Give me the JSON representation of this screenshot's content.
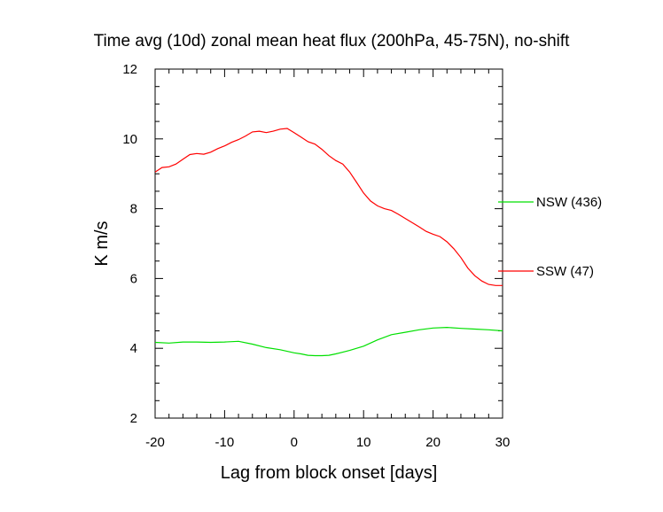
{
  "chart_data": {
    "type": "line",
    "title": "Time avg (10d) zonal mean heat flux (200hPa, 45-75N), no-shift",
    "xlabel": "Lag from block onset [days]",
    "ylabel": "K m/s",
    "xlim": [
      -20,
      30
    ],
    "ylim": [
      2,
      12
    ],
    "xticks": [
      -20,
      -10,
      0,
      10,
      20,
      30
    ],
    "yticks": [
      2,
      4,
      6,
      8,
      10,
      12
    ],
    "xtick_labels": [
      "-20",
      "-10",
      "0",
      "10",
      "20",
      "30"
    ],
    "ytick_labels": [
      "2",
      "4",
      "6",
      "8",
      "10",
      "12"
    ],
    "grid": false,
    "legend_position": "right-outside",
    "series": [
      {
        "name": "NSW (436)",
        "color": "#00e000",
        "x": [
          -20,
          -18,
          -16,
          -14,
          -12,
          -10,
          -8,
          -6,
          -4,
          -2,
          0,
          1,
          2,
          3,
          4,
          5,
          6,
          8,
          10,
          12,
          14,
          16,
          18,
          20,
          22,
          24,
          26,
          28,
          30
        ],
        "y": [
          4.17,
          4.15,
          4.18,
          4.18,
          4.17,
          4.18,
          4.2,
          4.12,
          4.02,
          3.96,
          3.87,
          3.84,
          3.8,
          3.79,
          3.79,
          3.8,
          3.84,
          3.94,
          4.06,
          4.24,
          4.39,
          4.46,
          4.53,
          4.58,
          4.6,
          4.57,
          4.55,
          4.53,
          4.5
        ]
      },
      {
        "name": "SSW (47)",
        "color": "#ff0000",
        "x": [
          -20,
          -19,
          -18,
          -17,
          -16,
          -15,
          -14,
          -13,
          -12,
          -11,
          -10,
          -9,
          -8,
          -7,
          -6,
          -5,
          -4,
          -3,
          -2,
          -1,
          0,
          1,
          2,
          3,
          4,
          5,
          6,
          7,
          8,
          9,
          10,
          11,
          12,
          13,
          14,
          15,
          16,
          17,
          18,
          19,
          20,
          21,
          22,
          23,
          24,
          25,
          26,
          27,
          28,
          29,
          30
        ],
        "y": [
          9.05,
          9.18,
          9.2,
          9.28,
          9.42,
          9.55,
          9.58,
          9.56,
          9.62,
          9.72,
          9.8,
          9.9,
          9.98,
          10.08,
          10.2,
          10.22,
          10.18,
          10.22,
          10.28,
          10.3,
          10.18,
          10.05,
          9.92,
          9.85,
          9.7,
          9.52,
          9.38,
          9.28,
          9.05,
          8.75,
          8.45,
          8.22,
          8.08,
          8.0,
          7.95,
          7.84,
          7.72,
          7.6,
          7.48,
          7.35,
          7.27,
          7.2,
          7.05,
          6.85,
          6.6,
          6.3,
          6.08,
          5.93,
          5.83,
          5.8,
          5.8
        ]
      }
    ]
  }
}
